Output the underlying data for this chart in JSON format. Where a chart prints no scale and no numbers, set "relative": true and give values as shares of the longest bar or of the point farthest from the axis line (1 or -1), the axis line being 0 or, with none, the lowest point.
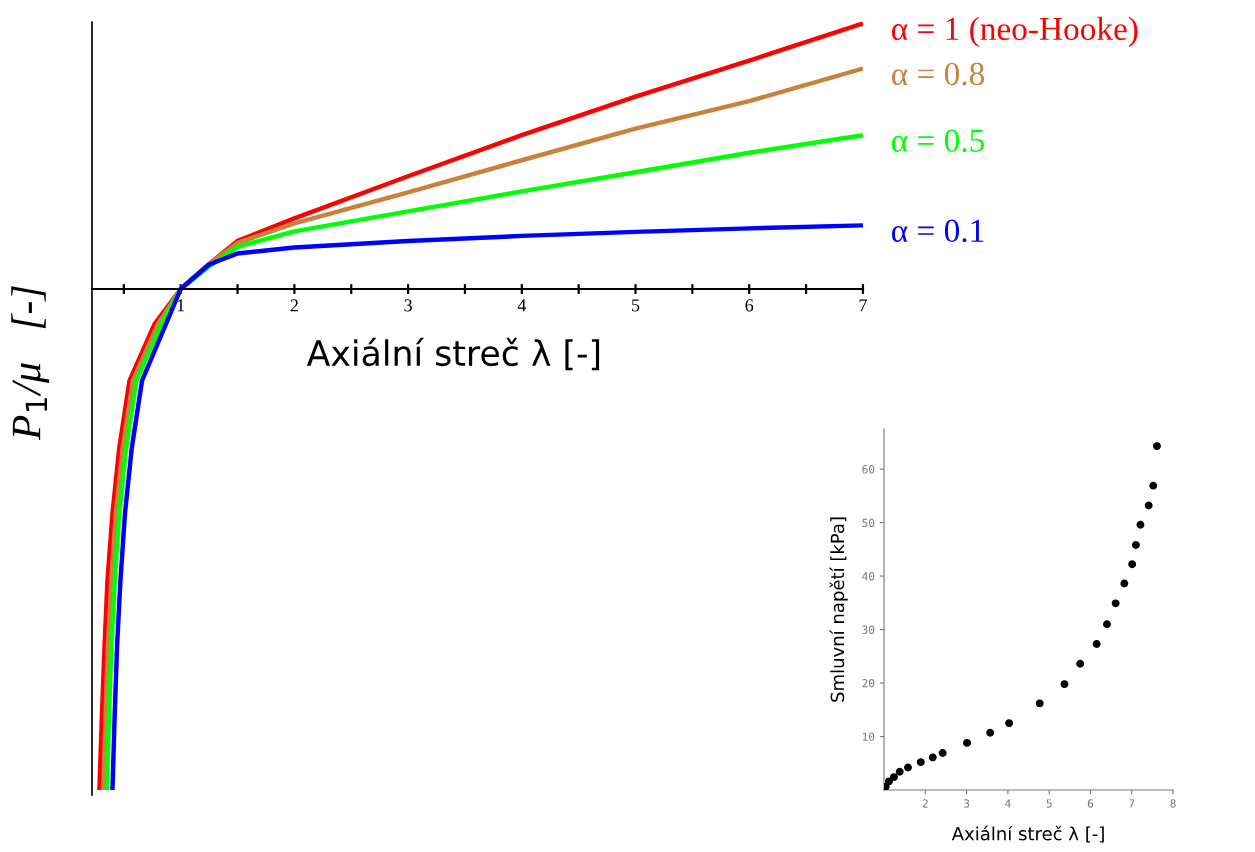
{
  "chart_data": [
    {
      "type": "line",
      "relative": true,
      "xlabel": "Axiální streč λ [-]",
      "ylabel": "P$_{1}$/μ   [-]",
      "xlim": [
        0.22,
        7
      ],
      "xticks": [
        {
          "value": 0.5,
          "label": null
        },
        1,
        {
          "value": 1.5,
          "label": null
        },
        2,
        {
          "value": 2.5,
          "label": null
        },
        3,
        {
          "value": 3.5,
          "label": null
        },
        4,
        {
          "value": 4.5,
          "label": null
        },
        5,
        {
          "value": 5.5,
          "label": null
        },
        6,
        {
          "value": 6.5,
          "label": null
        },
        7
      ],
      "series": [
        {
          "name": "α = 1 (neo-Hooke)",
          "color": "#ff0000",
          "x": [
            0.285,
            0.308,
            0.33,
            0.356,
            0.4,
            0.46,
            0.55,
            0.77,
            1,
            1.25,
            1.5,
            2,
            3,
            4,
            5,
            6,
            7
          ],
          "values": [
            -1,
            -0.847,
            -0.715,
            -0.582,
            -0.448,
            -0.317,
            -0.183,
            -0.07,
            0,
            0.05,
            0.096,
            0.141,
            0.225,
            0.307,
            0.384,
            0.456,
            0.53
          ]
        },
        {
          "name": "α = 0.8",
          "color": "#c8823c",
          "x": [
            0.32,
            0.34,
            0.36,
            0.39,
            0.43,
            0.49,
            0.58,
            0.8,
            1,
            1.25,
            1.5,
            2,
            3,
            4,
            5,
            6,
            7
          ],
          "values": [
            -1,
            -0.847,
            -0.715,
            -0.582,
            -0.448,
            -0.317,
            -0.183,
            -0.07,
            0,
            0.05,
            0.092,
            0.131,
            0.193,
            0.257,
            0.32,
            0.375,
            0.44
          ]
        },
        {
          "name": "α = 0.5",
          "color": "#00ff00",
          "x": [
            0.35,
            0.37,
            0.39,
            0.42,
            0.46,
            0.52,
            0.61,
            0.83,
            1,
            1.25,
            1.5,
            2,
            3,
            4,
            5,
            6,
            7
          ],
          "values": [
            -1,
            -0.847,
            -0.715,
            -0.582,
            -0.448,
            -0.317,
            -0.183,
            -0.07,
            0,
            0.045,
            0.084,
            0.115,
            0.155,
            0.195,
            0.233,
            0.272,
            0.307
          ]
        },
        {
          "name": "α = 0.1",
          "color": "#0000ff",
          "x": [
            0.4,
            0.42,
            0.44,
            0.47,
            0.51,
            0.57,
            0.66,
            0.87,
            1,
            1.25,
            1.5,
            2,
            3,
            4,
            5,
            6,
            7
          ],
          "values": [
            -1,
            -0.847,
            -0.715,
            -0.582,
            -0.448,
            -0.317,
            -0.183,
            -0.07,
            0,
            0.049,
            0.071,
            0.083,
            0.096,
            0.106,
            0.114,
            0.121,
            0.127
          ]
        }
      ]
    },
    {
      "type": "scatter",
      "xlabel": "Axiální streč λ [-]",
      "ylabel": "Smluvní napětí [kPa]",
      "xlim": [
        1,
        8
      ],
      "ylim": [
        0,
        67.5
      ],
      "xticks": [
        2,
        3,
        4,
        5,
        6,
        7,
        8
      ],
      "yticks": [
        10,
        20,
        30,
        40,
        50,
        60
      ],
      "marker": "circle",
      "color": "#000000",
      "x": [
        1.04,
        1.12,
        1.24,
        1.38,
        1.58,
        1.89,
        2.18,
        2.42,
        3.01,
        3.57,
        4.03,
        4.77,
        5.37,
        5.75,
        6.15,
        6.4,
        6.61,
        6.82,
        7.01,
        7.1,
        7.21,
        7.41,
        7.52,
        7.61
      ],
      "values": [
        0.6,
        1.6,
        2.4,
        3.4,
        4.2,
        5.2,
        6.1,
        6.9,
        8.8,
        10.7,
        12.5,
        16.2,
        19.8,
        23.6,
        27.3,
        31.0,
        34.9,
        38.6,
        42.2,
        45.8,
        49.6,
        53.2,
        56.9,
        64.3
      ]
    }
  ]
}
